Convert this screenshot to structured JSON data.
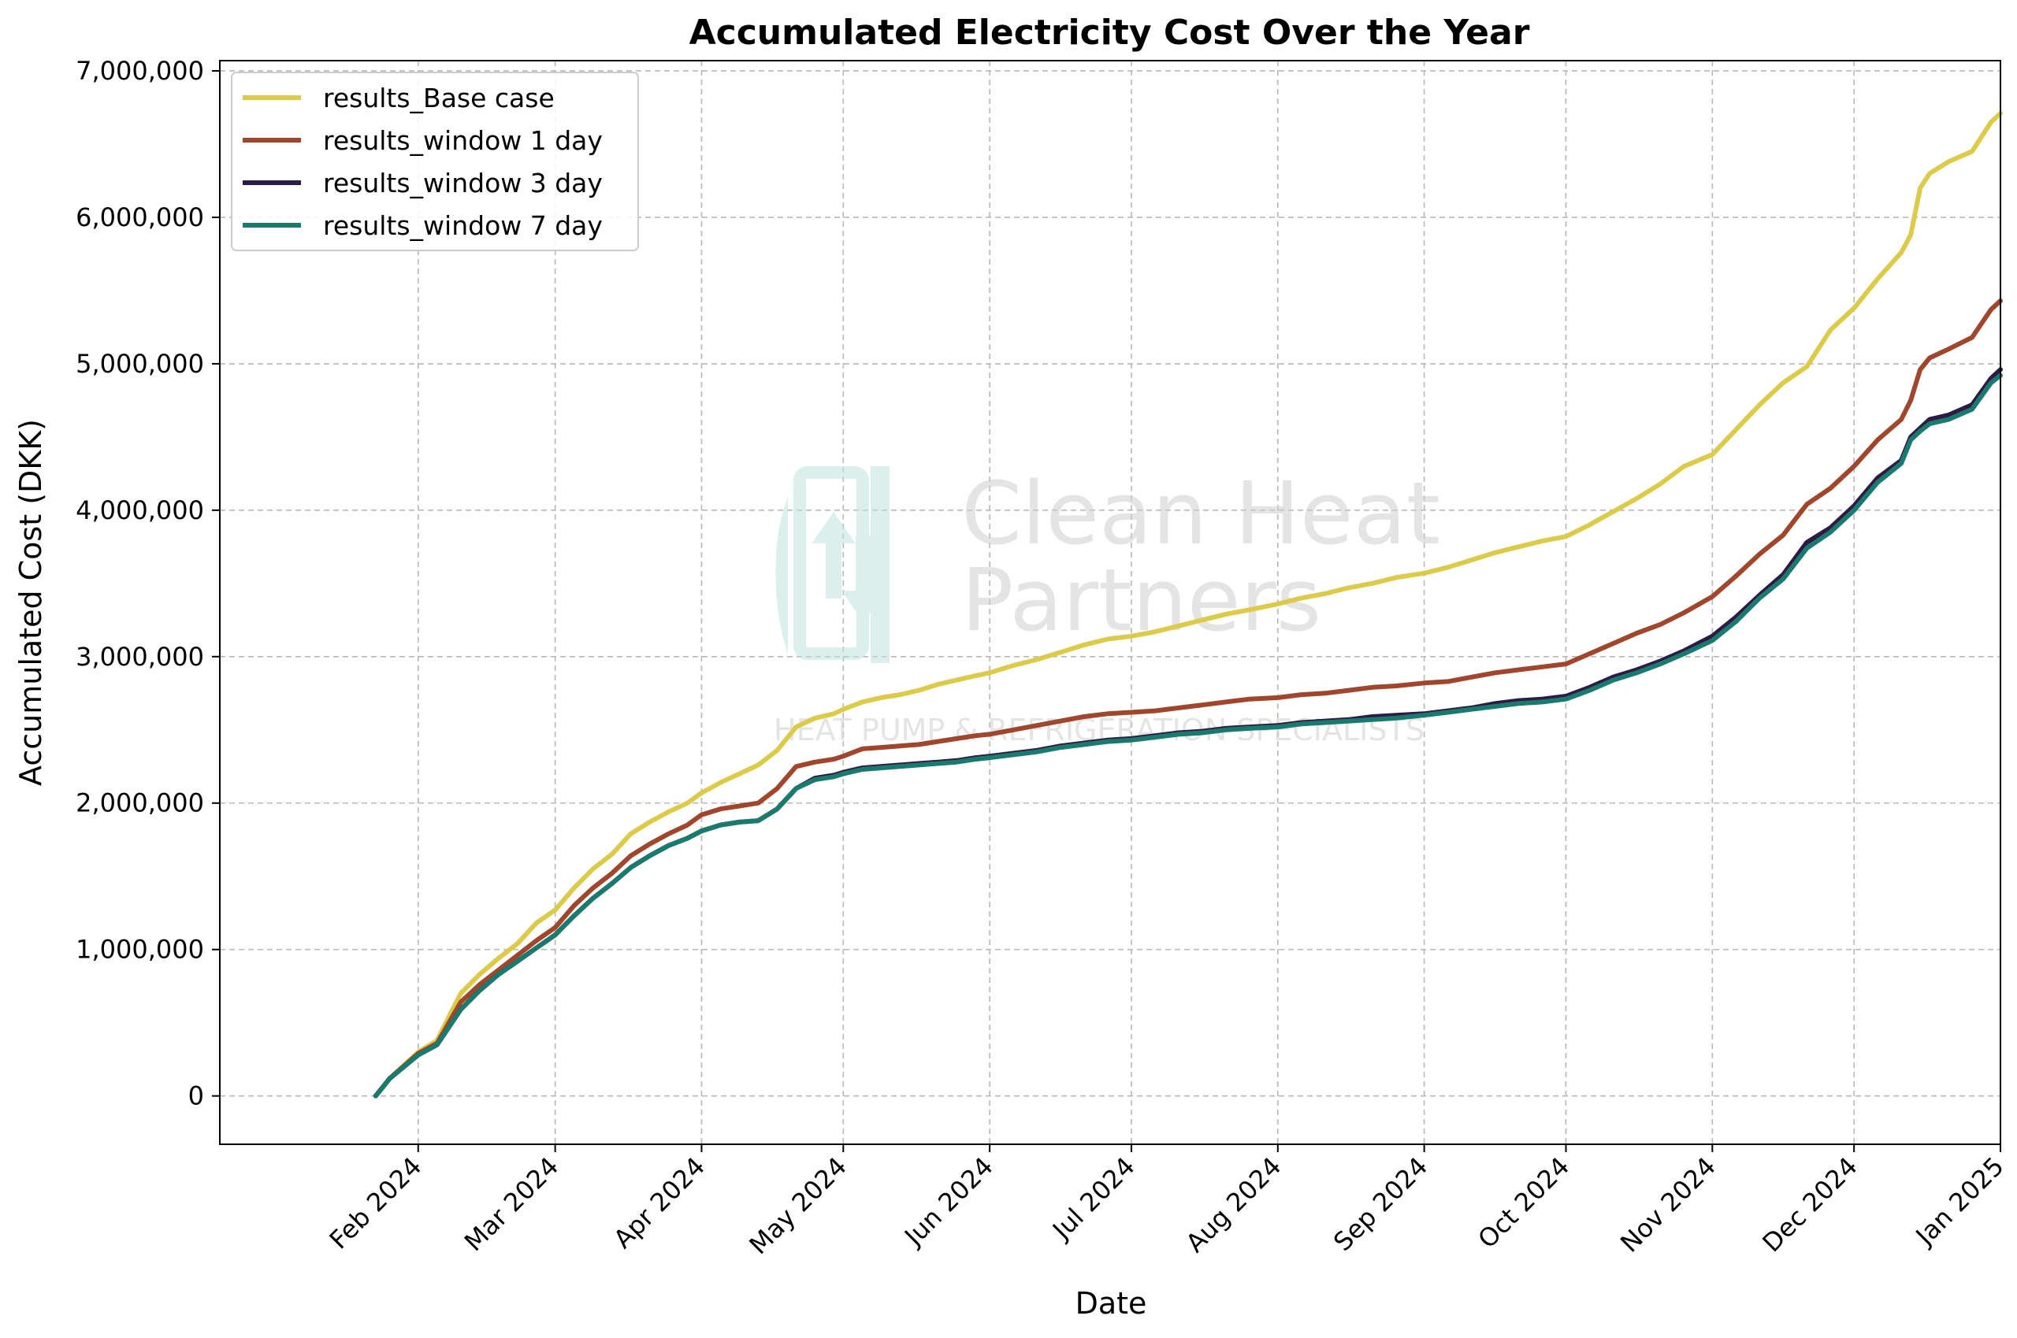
{
  "chart_data": {
    "type": "line",
    "title": "Accumulated Electricity Cost Over the Year",
    "xlabel": "Date",
    "ylabel": "Accumulated Cost (DKK)",
    "xlim": [
      -11,
      366
    ],
    "ylim": [
      -330000,
      7070000
    ],
    "y_ticks": [
      0,
      1000000,
      2000000,
      3000000,
      4000000,
      5000000,
      6000000,
      7000000
    ],
    "y_tick_labels": [
      "0",
      "1,000,000",
      "2,000,000",
      "3,000,000",
      "4,000,000",
      "5,000,000",
      "6,000,000",
      "7,000,000"
    ],
    "x_ticks": [
      31,
      60,
      91,
      121,
      152,
      182,
      213,
      244,
      274,
      305,
      335,
      366
    ],
    "x_tick_labels": [
      "Feb 2024",
      "Mar 2024",
      "Apr 2024",
      "May 2024",
      "Jun 2024",
      "Jul 2024",
      "Aug 2024",
      "Sep 2024",
      "Oct 2024",
      "Nov 2024",
      "Dec 2024",
      "Jan 2025"
    ],
    "grid": true,
    "legend_position": "top-left",
    "x_unit": "days since 2024-01-01",
    "series": [
      {
        "name": "results_Base case",
        "color": "#dccb4a",
        "x": [
          22,
          25,
          31,
          35,
          40,
          44,
          48,
          52,
          56,
          60,
          64,
          68,
          72,
          76,
          80,
          84,
          88,
          91,
          95,
          99,
          103,
          107,
          111,
          115,
          119,
          121,
          125,
          129,
          133,
          137,
          141,
          145,
          149,
          152,
          157,
          162,
          167,
          172,
          177,
          182,
          187,
          192,
          197,
          202,
          207,
          213,
          218,
          223,
          228,
          233,
          238,
          244,
          249,
          254,
          259,
          264,
          269,
          274,
          279,
          284,
          289,
          294,
          299,
          305,
          310,
          315,
          320,
          325,
          330,
          335,
          340,
          345,
          347,
          349,
          351,
          355,
          360,
          364,
          366
        ],
        "y": [
          0,
          120000,
          300000,
          380000,
          700000,
          830000,
          940000,
          1040000,
          1180000,
          1270000,
          1420000,
          1550000,
          1650000,
          1790000,
          1870000,
          1940000,
          2000000,
          2070000,
          2140000,
          2200000,
          2260000,
          2360000,
          2520000,
          2580000,
          2610000,
          2640000,
          2690000,
          2720000,
          2740000,
          2770000,
          2810000,
          2840000,
          2870000,
          2890000,
          2940000,
          2980000,
          3030000,
          3080000,
          3120000,
          3140000,
          3170000,
          3210000,
          3250000,
          3290000,
          3320000,
          3360000,
          3400000,
          3430000,
          3470000,
          3500000,
          3540000,
          3570000,
          3610000,
          3660000,
          3710000,
          3750000,
          3790000,
          3820000,
          3900000,
          3990000,
          4080000,
          4180000,
          4300000,
          4380000,
          4550000,
          4720000,
          4870000,
          4980000,
          5230000,
          5380000,
          5580000,
          5760000,
          5880000,
          6200000,
          6300000,
          6380000,
          6450000,
          6650000,
          6710000
        ]
      },
      {
        "name": "results_window 1 day",
        "color": "#a0462c",
        "x": [
          22,
          25,
          31,
          35,
          40,
          44,
          48,
          52,
          56,
          60,
          64,
          68,
          72,
          76,
          80,
          84,
          88,
          91,
          95,
          99,
          103,
          107,
          111,
          115,
          119,
          121,
          125,
          129,
          133,
          137,
          141,
          145,
          149,
          152,
          157,
          162,
          167,
          172,
          177,
          182,
          187,
          192,
          197,
          202,
          207,
          213,
          218,
          223,
          228,
          233,
          238,
          244,
          249,
          254,
          259,
          264,
          269,
          274,
          279,
          284,
          289,
          294,
          299,
          305,
          310,
          315,
          320,
          325,
          330,
          335,
          340,
          345,
          347,
          349,
          351,
          355,
          360,
          364,
          366
        ],
        "y": [
          0,
          120000,
          290000,
          360000,
          640000,
          760000,
          860000,
          960000,
          1060000,
          1150000,
          1300000,
          1420000,
          1520000,
          1640000,
          1720000,
          1790000,
          1850000,
          1920000,
          1960000,
          1980000,
          2000000,
          2100000,
          2250000,
          2280000,
          2300000,
          2320000,
          2370000,
          2380000,
          2390000,
          2400000,
          2420000,
          2440000,
          2460000,
          2470000,
          2500000,
          2530000,
          2560000,
          2590000,
          2610000,
          2620000,
          2630000,
          2650000,
          2670000,
          2690000,
          2710000,
          2720000,
          2740000,
          2750000,
          2770000,
          2790000,
          2800000,
          2820000,
          2830000,
          2860000,
          2890000,
          2910000,
          2930000,
          2950000,
          3020000,
          3090000,
          3160000,
          3220000,
          3300000,
          3410000,
          3550000,
          3700000,
          3830000,
          4040000,
          4150000,
          4300000,
          4480000,
          4620000,
          4750000,
          4960000,
          5040000,
          5100000,
          5180000,
          5370000,
          5430000
        ]
      },
      {
        "name": "results_window 3 day",
        "color": "#2d1b45",
        "x": [
          22,
          25,
          31,
          35,
          40,
          44,
          48,
          52,
          56,
          60,
          64,
          68,
          72,
          76,
          80,
          84,
          88,
          91,
          95,
          99,
          103,
          107,
          111,
          115,
          119,
          121,
          125,
          129,
          133,
          137,
          141,
          145,
          149,
          152,
          157,
          162,
          167,
          172,
          177,
          182,
          187,
          192,
          197,
          202,
          207,
          213,
          218,
          223,
          228,
          233,
          238,
          244,
          249,
          254,
          259,
          264,
          269,
          274,
          279,
          284,
          289,
          294,
          299,
          305,
          310,
          315,
          320,
          325,
          330,
          335,
          340,
          345,
          347,
          349,
          351,
          355,
          360,
          364,
          366
        ],
        "y": [
          0,
          120000,
          280000,
          350000,
          590000,
          720000,
          830000,
          920000,
          1010000,
          1100000,
          1230000,
          1350000,
          1450000,
          1560000,
          1640000,
          1710000,
          1760000,
          1810000,
          1850000,
          1870000,
          1880000,
          1960000,
          2100000,
          2170000,
          2190000,
          2210000,
          2240000,
          2250000,
          2260000,
          2270000,
          2280000,
          2290000,
          2310000,
          2320000,
          2340000,
          2360000,
          2390000,
          2410000,
          2430000,
          2440000,
          2460000,
          2480000,
          2490000,
          2510000,
          2520000,
          2530000,
          2550000,
          2560000,
          2570000,
          2590000,
          2600000,
          2610000,
          2630000,
          2650000,
          2680000,
          2700000,
          2710000,
          2730000,
          2790000,
          2860000,
          2910000,
          2970000,
          3040000,
          3140000,
          3270000,
          3420000,
          3560000,
          3780000,
          3880000,
          4030000,
          4220000,
          4340000,
          4500000,
          4560000,
          4620000,
          4650000,
          4720000,
          4900000,
          4960000
        ]
      },
      {
        "name": "results_window 7 day",
        "color": "#1a7a6d",
        "x": [
          22,
          25,
          31,
          35,
          40,
          44,
          48,
          52,
          56,
          60,
          64,
          68,
          72,
          76,
          80,
          84,
          88,
          91,
          95,
          99,
          103,
          107,
          111,
          115,
          119,
          121,
          125,
          129,
          133,
          137,
          141,
          145,
          149,
          152,
          157,
          162,
          167,
          172,
          177,
          182,
          187,
          192,
          197,
          202,
          207,
          213,
          218,
          223,
          228,
          233,
          238,
          244,
          249,
          254,
          259,
          264,
          269,
          274,
          279,
          284,
          289,
          294,
          299,
          305,
          310,
          315,
          320,
          325,
          330,
          335,
          340,
          345,
          347,
          349,
          351,
          355,
          360,
          364,
          366
        ],
        "y": [
          0,
          120000,
          280000,
          350000,
          590000,
          720000,
          830000,
          920000,
          1010000,
          1100000,
          1230000,
          1350000,
          1450000,
          1560000,
          1640000,
          1710000,
          1760000,
          1810000,
          1850000,
          1870000,
          1880000,
          1960000,
          2100000,
          2160000,
          2180000,
          2200000,
          2230000,
          2240000,
          2250000,
          2260000,
          2270000,
          2280000,
          2300000,
          2310000,
          2330000,
          2350000,
          2380000,
          2400000,
          2420000,
          2430000,
          2450000,
          2470000,
          2480000,
          2500000,
          2510000,
          2520000,
          2540000,
          2550000,
          2560000,
          2570000,
          2580000,
          2600000,
          2620000,
          2640000,
          2660000,
          2680000,
          2690000,
          2710000,
          2770000,
          2840000,
          2890000,
          2950000,
          3020000,
          3110000,
          3240000,
          3400000,
          3530000,
          3740000,
          3850000,
          4000000,
          4190000,
          4320000,
          4480000,
          4540000,
          4590000,
          4620000,
          4690000,
          4870000,
          4920000
        ]
      }
    ]
  },
  "watermark": {
    "line1": "Clean Heat",
    "line2": "Partners",
    "tagline": "HEAT PUMP & REFRIGERATION SPECIALISTS"
  }
}
